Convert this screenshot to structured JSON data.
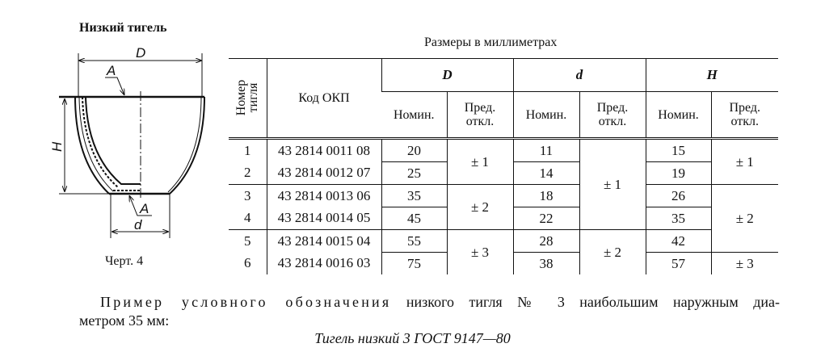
{
  "figure": {
    "title": "Низкий тигель",
    "caption": "Черт. 4",
    "labels": {
      "D": "D",
      "A_top": "A",
      "A_bottom": "A",
      "H": "H",
      "d": "d"
    }
  },
  "table": {
    "units": "Размеры в миллиметрах",
    "headers": {
      "number": [
        "Номер",
        "тигля"
      ],
      "code": "Код ОКП",
      "D": "D",
      "d": "d",
      "H": "H",
      "nominal": "Номин.",
      "tol": [
        "Пред.",
        "откл."
      ]
    },
    "rows": [
      {
        "num": "1",
        "code": "43 2814 0011 08",
        "D": "20",
        "d": "11",
        "H": "15"
      },
      {
        "num": "2",
        "code": "43 2814 0012 07",
        "D": "25",
        "d": "14",
        "H": "19"
      },
      {
        "num": "3",
        "code": "43 2814 0013 06",
        "D": "35",
        "d": "18",
        "H": "26"
      },
      {
        "num": "4",
        "code": "43 2814 0014 05",
        "D": "45",
        "d": "22",
        "H": "35"
      },
      {
        "num": "5",
        "code": "43 2814 0015 04",
        "D": "55",
        "d": "28",
        "H": "42"
      },
      {
        "num": "6",
        "code": "43 2814 0016 03",
        "D": "75",
        "d": "38",
        "H": "57"
      }
    ],
    "tolerances": {
      "D": [
        "± 1",
        "± 2",
        "± 3"
      ],
      "d": [
        "± 1",
        "± 2"
      ],
      "H": [
        "± 1",
        "± 2",
        "± 3"
      ]
    }
  },
  "text": {
    "spaced": "Пример условного обозначения",
    "line1_rest": "низкого тигля № 3 наибольшим наружным диа-",
    "line2": "метром 35 мм:",
    "example": "Тигель низкий 3 ГОСТ 9147—80"
  }
}
